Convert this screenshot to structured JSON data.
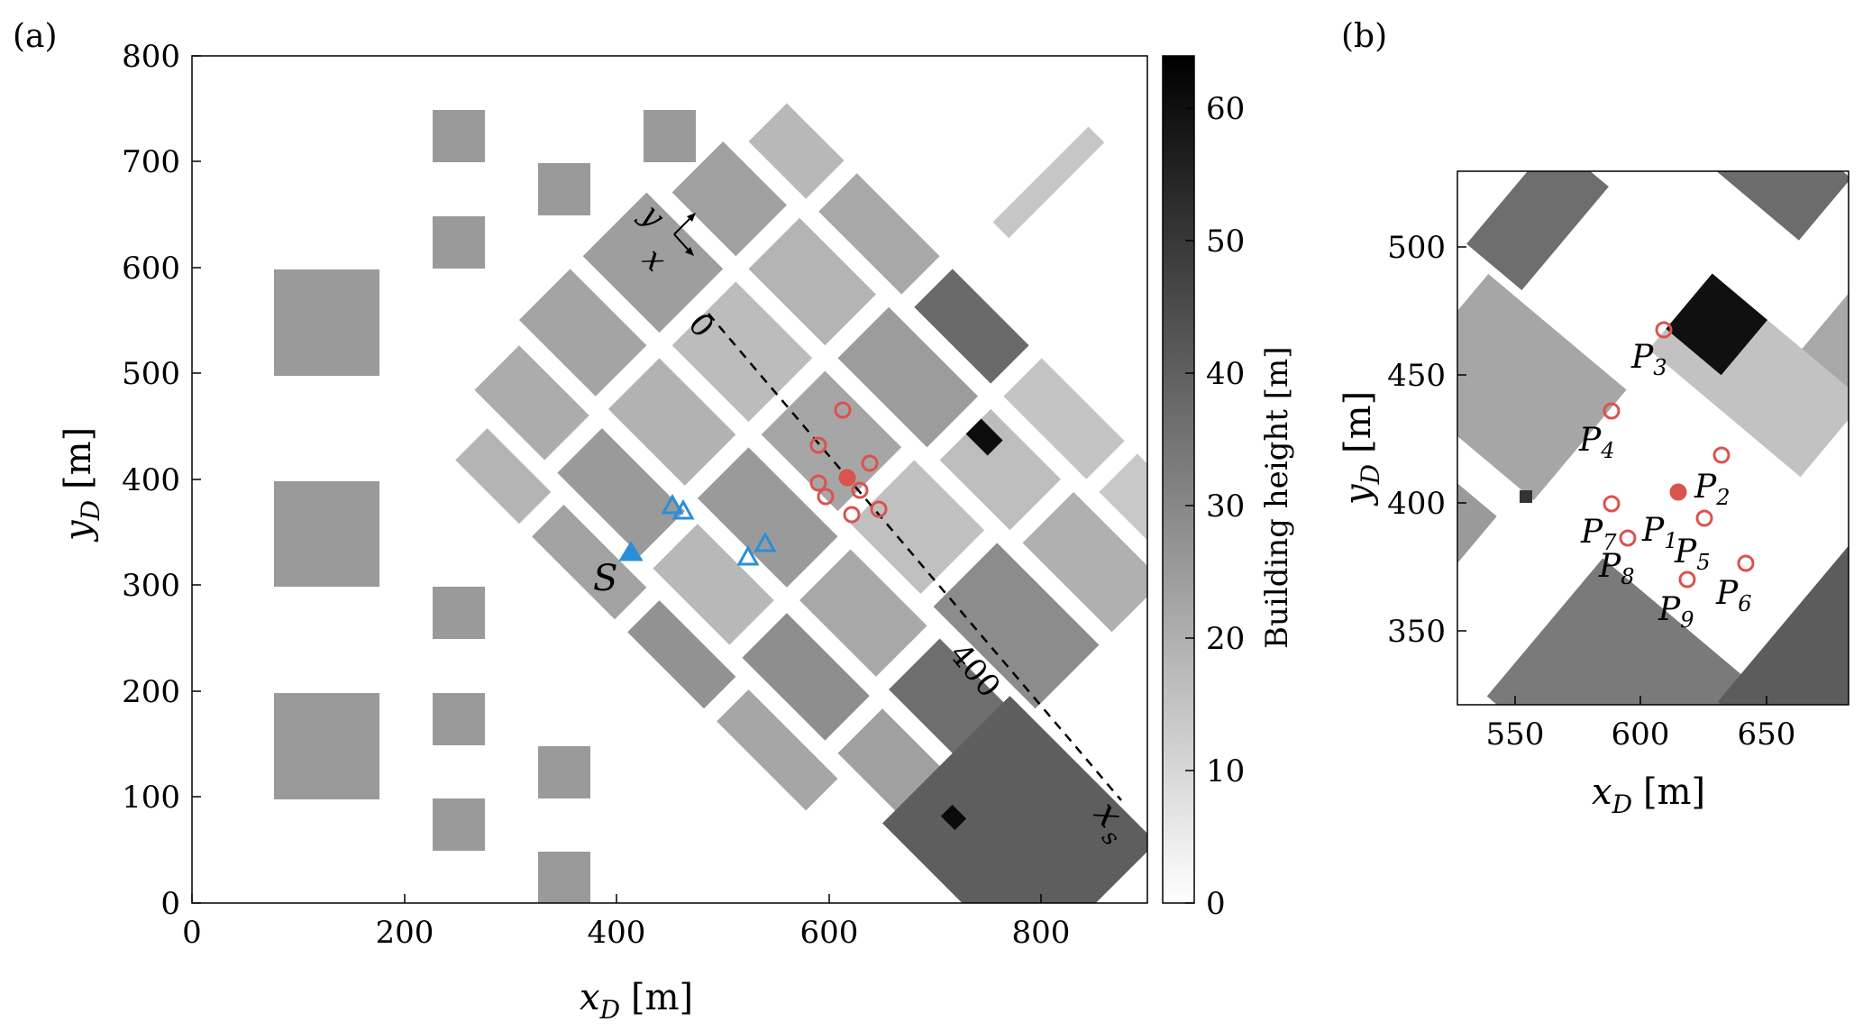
{
  "panel_a_label": "(a)",
  "panel_b_label": "(b)",
  "main_map": {
    "x_ticks": [
      "0",
      "200",
      "400",
      "600",
      "800"
    ],
    "y_ticks": [
      "0",
      "100",
      "200",
      "300",
      "400",
      "500",
      "600",
      "700",
      "800"
    ],
    "x_label": "x",
    "x_label_sub": "D",
    "x_label_unit": "[m]",
    "y_label": "y",
    "y_label_sub": "D",
    "y_label_unit": "[m]",
    "source_label": "S",
    "transect_start": "0",
    "transect_mid": "400",
    "transect_end_label": "x",
    "transect_end_sub": "s",
    "compass_x": "x",
    "compass_y": "y"
  },
  "colorbar": {
    "label": "Building height [m]",
    "ticks": [
      "0",
      "10",
      "20",
      "30",
      "40",
      "50",
      "60"
    ],
    "colors": {
      "low": "#ffffff",
      "high": "#000000"
    }
  },
  "zoom_map": {
    "x_ticks": [
      "550",
      "600",
      "650"
    ],
    "y_ticks": [
      "350",
      "400",
      "450",
      "500"
    ],
    "x_label": "x",
    "x_label_sub": "D",
    "x_label_unit": "[m]",
    "y_label": "y",
    "y_label_sub": "D",
    "y_label_unit": "[m]",
    "points": [
      {
        "name": "P",
        "sub": "1",
        "filled": true
      },
      {
        "name": "P",
        "sub": "2",
        "filled": false
      },
      {
        "name": "P",
        "sub": "3",
        "filled": false
      },
      {
        "name": "P",
        "sub": "4",
        "filled": false
      },
      {
        "name": "P",
        "sub": "5",
        "filled": false
      },
      {
        "name": "P",
        "sub": "6",
        "filled": false
      },
      {
        "name": "P",
        "sub": "7",
        "filled": false
      },
      {
        "name": "P",
        "sub": "8",
        "filled": false
      },
      {
        "name": "P",
        "sub": "9",
        "filled": false
      }
    ]
  },
  "marker_colors": {
    "probe": "#d9534f",
    "sensor": "#2a8fd8"
  }
}
